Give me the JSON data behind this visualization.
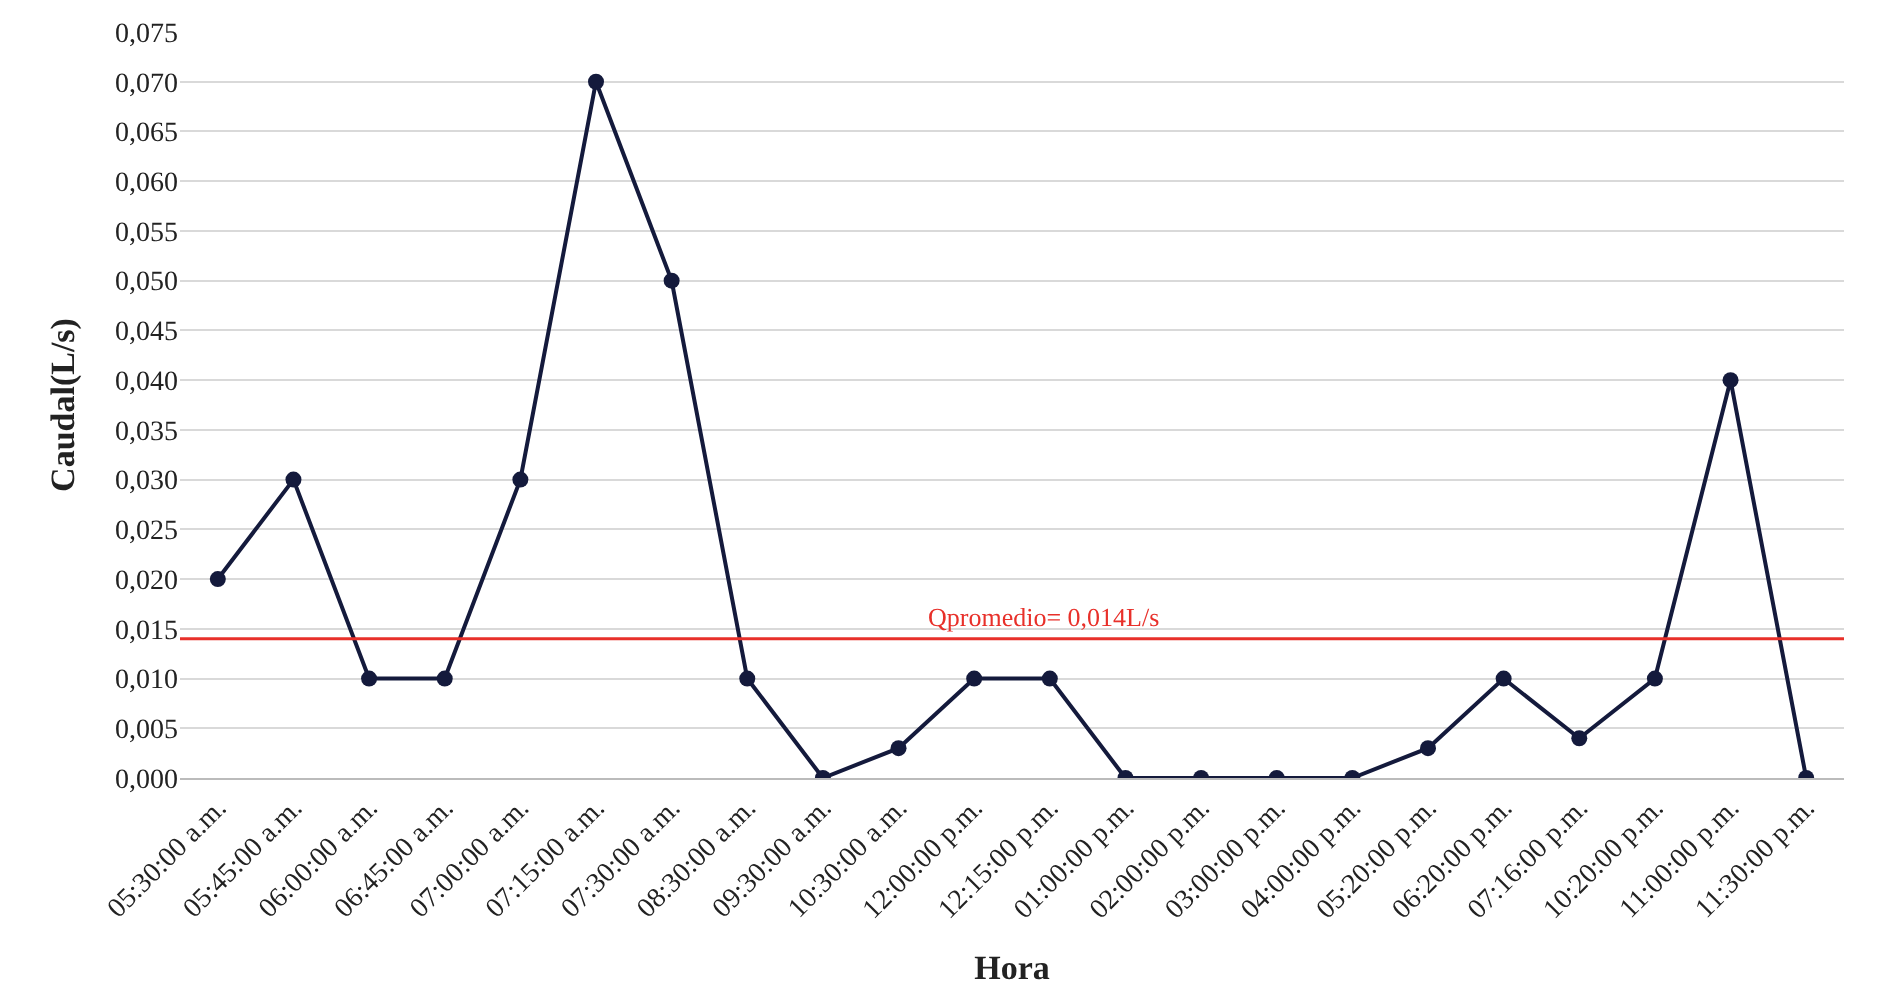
{
  "chart_data": {
    "type": "line",
    "xlabel": "Hora",
    "ylabel": "Caudal(L/s)",
    "categories": [
      "05:30:00 a.m.",
      "05:45:00 a.m.",
      "06:00:00 a.m.",
      "06:45:00 a.m.",
      "07:00:00 a.m.",
      "07:15:00 a.m.",
      "07:30:00 a.m.",
      "08:30:00 a.m.",
      "09:30:00 a.m.",
      "10:30:00 a.m.",
      "12:00:00 p.m.",
      "12:15:00 p.m.",
      "01:00:00 p.m.",
      "02:00:00 p.m.",
      "03:00:00 p.m.",
      "04:00:00 p.m.",
      "05:20:00 p.m.",
      "06:20:00 p.m.",
      "07:16:00 p.m.",
      "10:20:00 p.m.",
      "11:00:00 p.m.",
      "11:30:00 p.m."
    ],
    "series": [
      {
        "color": "#141a3c",
        "values": [
          0.02,
          0.03,
          0.01,
          0.01,
          0.03,
          0.07,
          0.05,
          0.01,
          0.0,
          0.003,
          0.01,
          0.01,
          0.0,
          0.0,
          0.0,
          0.0,
          0.003,
          0.01,
          0.004,
          0.01,
          0.04,
          0.0
        ]
      }
    ],
    "ylim": [
      0,
      0.075
    ],
    "yticks": [
      {
        "value": 0,
        "label": "0,000"
      },
      {
        "value": 0.005,
        "label": "0,005"
      },
      {
        "value": 0.01,
        "label": "0,010"
      },
      {
        "value": 0.015,
        "label": "0,015"
      },
      {
        "value": 0.02,
        "label": "0,020"
      },
      {
        "value": 0.025,
        "label": "0,025"
      },
      {
        "value": 0.03,
        "label": "0,030"
      },
      {
        "value": 0.035,
        "label": "0,035"
      },
      {
        "value": 0.04,
        "label": "0,040"
      },
      {
        "value": 0.045,
        "label": "0,045"
      },
      {
        "value": 0.05,
        "label": "0,050"
      },
      {
        "value": 0.055,
        "label": "0,055"
      },
      {
        "value": 0.06,
        "label": "0,060"
      },
      {
        "value": 0.065,
        "label": "0,065"
      },
      {
        "value": 0.07,
        "label": "0,070"
      },
      {
        "value": 0.075,
        "label": "0,075"
      }
    ],
    "ref_lines": [
      {
        "axis": "y",
        "value": 0.014,
        "label": "Qpromedio= 0,014L/s",
        "color": "#e8302a"
      }
    ],
    "grid": "y",
    "marker": "circle",
    "line_style": "solid"
  }
}
